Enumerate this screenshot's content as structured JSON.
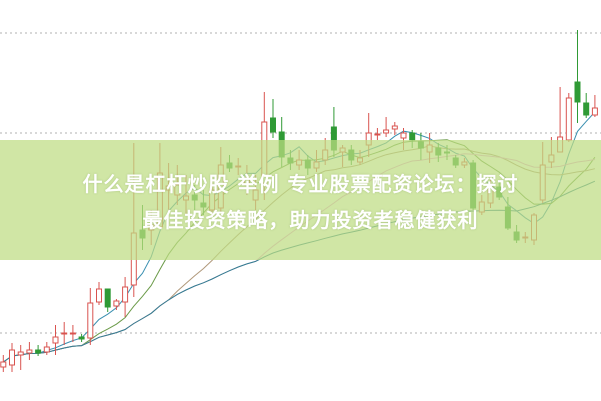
{
  "headline": {
    "line1": "什么是杠杆炒股 举例 专业股票配资论坛：探讨",
    "line2": "最佳投资策略，助力投资者稳健获利"
  },
  "colors": {
    "up": "#d9534f",
    "down": "#2f9a35",
    "band": "#cfe4a4",
    "grid": "#b0b0b0",
    "ma": [
      "#3a8fb0",
      "#6a9a48",
      "#b0987a",
      "#e8a0d8",
      "#2f7f90"
    ]
  },
  "chart_data": {
    "type": "candlestick",
    "title": "",
    "xlabel": "",
    "ylabel": "",
    "ylim": [
      0,
      400
    ],
    "grid": "horizontal dotted",
    "gridlines": [
      67,
      267,
      367
    ],
    "ma_periods": [
      5,
      10,
      20,
      30,
      60
    ],
    "candles": [
      [
        33,
        38,
        45,
        28
      ],
      [
        35,
        50,
        57,
        28
      ],
      [
        45,
        48,
        55,
        30
      ],
      [
        47,
        50,
        58,
        40
      ],
      [
        50,
        47,
        55,
        44
      ],
      [
        48,
        53,
        58,
        45
      ],
      [
        57,
        63,
        75,
        45
      ],
      [
        66,
        67,
        78,
        55
      ],
      [
        66,
        67,
        75,
        58
      ],
      [
        63,
        61,
        66,
        58
      ],
      [
        62,
        97,
        112,
        55
      ],
      [
        98,
        111,
        118,
        95
      ],
      [
        111,
        93,
        111,
        88
      ],
      [
        94,
        99,
        101,
        90
      ],
      [
        98,
        113,
        123,
        83
      ],
      [
        115,
        167,
        257,
        103
      ],
      [
        170,
        162,
        195,
        150
      ],
      [
        170,
        175,
        190,
        155
      ],
      [
        173,
        227,
        257,
        187
      ],
      [
        210,
        214,
        237,
        187
      ],
      [
        205,
        215,
        235,
        195
      ],
      [
        200,
        204,
        225,
        185
      ],
      [
        205,
        200,
        215,
        190
      ],
      [
        197,
        193,
        210,
        185
      ],
      [
        190,
        210,
        225,
        185
      ],
      [
        192,
        235,
        253,
        188
      ],
      [
        237,
        232,
        245,
        228
      ],
      [
        233,
        234,
        242,
        225
      ],
      [
        215,
        222,
        235,
        205
      ],
      [
        200,
        210,
        225,
        190
      ],
      [
        217,
        278,
        308,
        200
      ],
      [
        282,
        268,
        301,
        262
      ],
      [
        268,
        243,
        283,
        233
      ],
      [
        242,
        237,
        250,
        230
      ],
      [
        235,
        240,
        250,
        230
      ],
      [
        240,
        232,
        245,
        225
      ],
      [
        232,
        238,
        250,
        228
      ],
      [
        240,
        250,
        262,
        235
      ],
      [
        273,
        250,
        293,
        243
      ],
      [
        248,
        252,
        255,
        233
      ],
      [
        250,
        240,
        255,
        235
      ],
      [
        238,
        242,
        250,
        235
      ],
      [
        255,
        267,
        287,
        243
      ],
      [
        265,
        266,
        272,
        260
      ],
      [
        267,
        270,
        283,
        263
      ],
      [
        271,
        274,
        278,
        265
      ],
      [
        262,
        267,
        272,
        250
      ],
      [
        267,
        260,
        270,
        252
      ],
      [
        258,
        252,
        267,
        240
      ],
      [
        248,
        255,
        267,
        237
      ],
      [
        252,
        245,
        257,
        238
      ],
      [
        248,
        247,
        255,
        240
      ],
      [
        242,
        235,
        245,
        232
      ],
      [
        235,
        238,
        242,
        232
      ],
      [
        237,
        192,
        240,
        190
      ],
      [
        188,
        198,
        205,
        185
      ],
      [
        197,
        213,
        220,
        192
      ],
      [
        213,
        203,
        220,
        200
      ],
      [
        193,
        172,
        203,
        170
      ],
      [
        168,
        160,
        175,
        157
      ],
      [
        162,
        163,
        168,
        157
      ],
      [
        160,
        185,
        187,
        155
      ],
      [
        200,
        235,
        258,
        197
      ],
      [
        238,
        245,
        263,
        232
      ],
      [
        248,
        263,
        313,
        248
      ],
      [
        260,
        302,
        307,
        258
      ],
      [
        318,
        298,
        370,
        277
      ],
      [
        297,
        285,
        307,
        282
      ],
      [
        285,
        292,
        305,
        283
      ]
    ]
  }
}
